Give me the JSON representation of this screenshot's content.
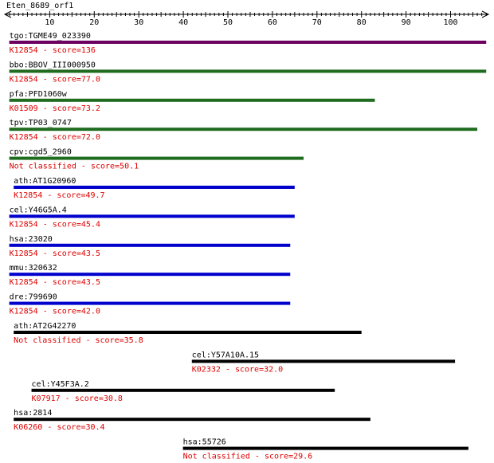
{
  "query": {
    "name": "Eten_8689_orf1"
  },
  "axis": {
    "min": 0,
    "max": 108,
    "ticks": [
      10,
      20,
      30,
      40,
      50,
      60,
      70,
      80,
      90,
      100
    ]
  },
  "hits": [
    {
      "name": "tgo:TGME49_023390",
      "annotation": "K12854 - score=136",
      "start": 1,
      "end": 108,
      "color": "#6b0060"
    },
    {
      "name": "bbo:BBOV_III000950",
      "annotation": "K12854 - score=77.0",
      "start": 1,
      "end": 108,
      "color": "#1f6b1f"
    },
    {
      "name": "pfa:PFD1060w",
      "annotation": "K01509 - score=73.2",
      "start": 1,
      "end": 83,
      "color": "#1f6b1f"
    },
    {
      "name": "tpv:TP03_0747",
      "annotation": "K12854 - score=72.0",
      "start": 1,
      "end": 106,
      "color": "#1f6b1f"
    },
    {
      "name": "cpv:cgd5_2960",
      "annotation": "Not classified - score=50.1",
      "start": 1,
      "end": 67,
      "color": "#1f6b1f"
    },
    {
      "name": "ath:AT1G20960",
      "annotation": "K12854 - score=49.7",
      "start": 2,
      "end": 65,
      "color": "#0000cc"
    },
    {
      "name": "cel:Y46G5A.4",
      "annotation": "K12854 - score=45.4",
      "start": 1,
      "end": 65,
      "color": "#0000cc"
    },
    {
      "name": "hsa:23020",
      "annotation": "K12854 - score=43.5",
      "start": 1,
      "end": 64,
      "color": "#0000cc"
    },
    {
      "name": "mmu:320632",
      "annotation": "K12854 - score=43.5",
      "start": 1,
      "end": 64,
      "color": "#0000cc"
    },
    {
      "name": "dre:799690",
      "annotation": "K12854 - score=42.0",
      "start": 1,
      "end": 64,
      "color": "#0000cc"
    },
    {
      "name": "ath:AT2G42270",
      "annotation": "Not classified - score=35.8",
      "start": 2,
      "end": 80,
      "color": "#000000"
    },
    {
      "name": "cel:Y57A10A.15",
      "annotation": "K02332 - score=32.0",
      "start": 42,
      "end": 101,
      "color": "#000000"
    },
    {
      "name": "cel:Y45F3A.2",
      "annotation": "K07917 - score=30.8",
      "start": 6,
      "end": 74,
      "color": "#000000"
    },
    {
      "name": "hsa:2814",
      "annotation": "K06260 - score=30.4",
      "start": 2,
      "end": 82,
      "color": "#000000"
    },
    {
      "name": "hsa:55726",
      "annotation": "Not classified - score=29.6",
      "start": 40,
      "end": 104,
      "color": "#000000"
    }
  ],
  "colors": {
    "axis": "#000000",
    "hit_label": "#000000",
    "annotation": "#dd0000"
  }
}
